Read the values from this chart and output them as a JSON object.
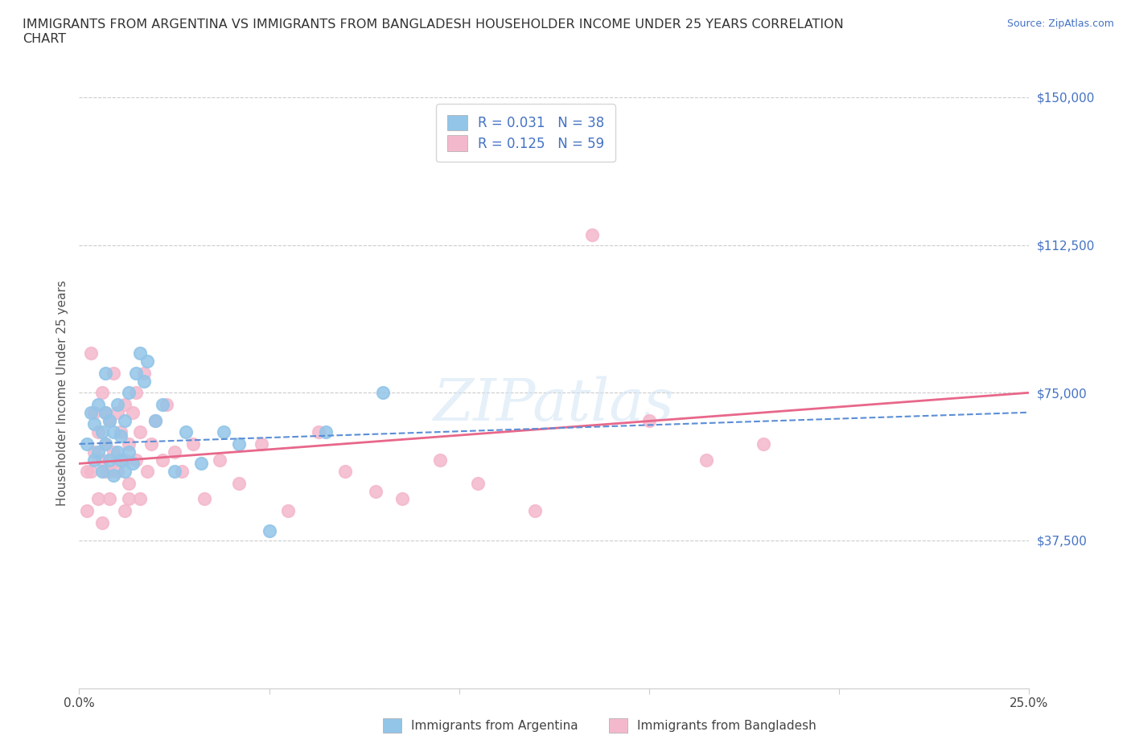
{
  "title": "IMMIGRANTS FROM ARGENTINA VS IMMIGRANTS FROM BANGLADESH HOUSEHOLDER INCOME UNDER 25 YEARS CORRELATION\nCHART",
  "source": "Source: ZipAtlas.com",
  "ylabel": "Householder Income Under 25 years",
  "xlim": [
    0.0,
    0.25
  ],
  "ylim": [
    0,
    150000
  ],
  "xticks": [
    0.0,
    0.05,
    0.1,
    0.15,
    0.2,
    0.25
  ],
  "xtick_labels": [
    "0.0%",
    "",
    "",
    "",
    "",
    "25.0%"
  ],
  "yticks": [
    0,
    37500,
    75000,
    112500,
    150000
  ],
  "ytick_labels": [
    "",
    "$37,500",
    "$75,000",
    "$112,500",
    "$150,000"
  ],
  "argentina_color": "#92c5e8",
  "bangladesh_color": "#f4b8cc",
  "argentina_line_color": "#5b8ed6",
  "bangladesh_line_color": "#e8678a",
  "argentina_R": 0.031,
  "argentina_N": 38,
  "bangladesh_R": 0.125,
  "bangladesh_N": 59,
  "watermark_text": "ZIPatlas",
  "argentina_x": [
    0.002,
    0.003,
    0.004,
    0.004,
    0.005,
    0.005,
    0.006,
    0.006,
    0.007,
    0.007,
    0.007,
    0.008,
    0.008,
    0.009,
    0.009,
    0.01,
    0.01,
    0.011,
    0.011,
    0.012,
    0.012,
    0.013,
    0.013,
    0.014,
    0.015,
    0.016,
    0.017,
    0.018,
    0.02,
    0.022,
    0.025,
    0.028,
    0.032,
    0.038,
    0.042,
    0.05,
    0.065,
    0.08
  ],
  "argentina_y": [
    62000,
    70000,
    58000,
    67000,
    72000,
    60000,
    65000,
    55000,
    80000,
    62000,
    70000,
    58000,
    68000,
    54000,
    65000,
    60000,
    72000,
    58000,
    64000,
    55000,
    68000,
    60000,
    75000,
    57000,
    80000,
    85000,
    78000,
    83000,
    68000,
    72000,
    55000,
    65000,
    57000,
    65000,
    62000,
    40000,
    65000,
    75000
  ],
  "bangladesh_x": [
    0.002,
    0.003,
    0.004,
    0.004,
    0.005,
    0.005,
    0.006,
    0.006,
    0.007,
    0.007,
    0.008,
    0.008,
    0.009,
    0.009,
    0.01,
    0.01,
    0.011,
    0.012,
    0.012,
    0.013,
    0.013,
    0.014,
    0.015,
    0.015,
    0.016,
    0.017,
    0.018,
    0.019,
    0.02,
    0.022,
    0.023,
    0.025,
    0.027,
    0.03,
    0.033,
    0.037,
    0.042,
    0.048,
    0.055,
    0.063,
    0.07,
    0.078,
    0.085,
    0.095,
    0.105,
    0.12,
    0.135,
    0.15,
    0.165,
    0.18,
    0.002,
    0.003,
    0.006,
    0.007,
    0.008,
    0.01,
    0.012,
    0.013,
    0.016
  ],
  "bangladesh_y": [
    55000,
    85000,
    60000,
    70000,
    65000,
    48000,
    75000,
    58000,
    70000,
    62000,
    55000,
    68000,
    80000,
    60000,
    70000,
    55000,
    65000,
    58000,
    72000,
    62000,
    48000,
    70000,
    75000,
    58000,
    65000,
    80000,
    55000,
    62000,
    68000,
    58000,
    72000,
    60000,
    55000,
    62000,
    48000,
    58000,
    52000,
    62000,
    45000,
    65000,
    55000,
    50000,
    48000,
    58000,
    52000,
    45000,
    115000,
    68000,
    58000,
    62000,
    45000,
    55000,
    42000,
    55000,
    48000,
    58000,
    45000,
    52000,
    48000
  ]
}
